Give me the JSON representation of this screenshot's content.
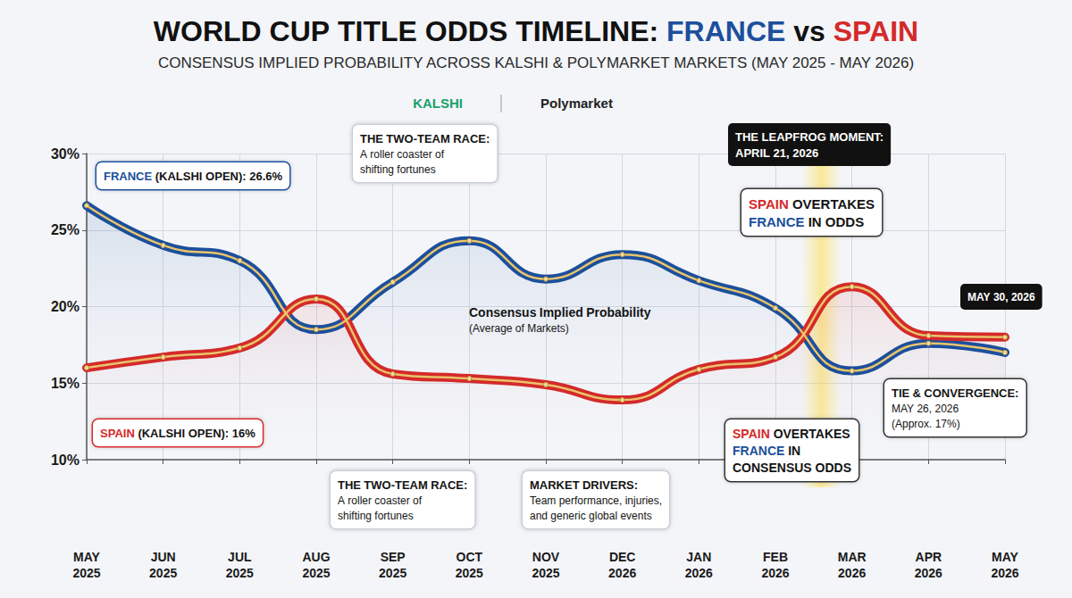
{
  "chart_data": {
    "type": "line",
    "title": "WORLD CUP TITLE ODDS TIMELINE: FRANCE vs SPAIN",
    "subtitle": "CONSENSUS IMPLIED PROBABILITY ACROSS KALSHI & POLYMARKET MARKETS (MAY 2025 - MAY 2026)",
    "sources": [
      "KALSHI",
      "Polymarket"
    ],
    "categories": [
      "MAY 2025",
      "JUN 2025",
      "JUL 2025",
      "AUG 2025",
      "SEP 2025",
      "OCT 2025",
      "NOV 2025",
      "DEC 2026",
      "JAN 2026",
      "FEB 2026",
      "MAR 2026",
      "APR 2026",
      "MAY 2026"
    ],
    "series": [
      {
        "name": "FRANCE",
        "color": "#1c4f9c",
        "values": [
          26.6,
          24.0,
          23.0,
          18.5,
          21.6,
          24.3,
          21.8,
          23.4,
          21.7,
          19.9,
          15.8,
          17.6,
          17.0
        ]
      },
      {
        "name": "SPAIN",
        "color": "#d42a2a",
        "values": [
          16.0,
          16.7,
          17.3,
          20.5,
          15.6,
          15.3,
          14.9,
          13.9,
          15.9,
          16.7,
          21.3,
          18.1,
          18.0
        ]
      }
    ],
    "ylim": [
      10,
      30
    ],
    "yticks": [
      {
        "value": 10,
        "label": "10%"
      },
      {
        "value": 15,
        "label": "15%"
      },
      {
        "value": 20,
        "label": "20%"
      },
      {
        "value": 25,
        "label": "25%"
      },
      {
        "value": 30,
        "label": "30%"
      }
    ],
    "grid": true,
    "marker": "circle",
    "line_style": "solid",
    "annotations": [
      {
        "text": "FRANCE (KALSHI OPEN): 26.6%"
      },
      {
        "text": "SPAIN (KALSHI OPEN): 16%"
      },
      {
        "heading": "THE TWO-TEAM RACE:",
        "text": "A roller coaster of shifting fortunes"
      },
      {
        "heading": "THE LEAPFROG MOMENT:",
        "text": "APRIL 21, 2026"
      },
      {
        "text": "SPAIN OVERTAKES FRANCE IN ODDS"
      },
      {
        "heading": "Consensus Implied Probability",
        "text": "(Average of Markets)"
      },
      {
        "text": "SPAIN OVERTAKES FRANCE IN CONSENSUS ODDS"
      },
      {
        "text": "MAY 30, 2026"
      },
      {
        "heading": "TIE & CONVERGENCE:",
        "text": "MAY 26, 2026 (Approx. 17%)"
      },
      {
        "heading": "THE TWO-TEAM RACE:",
        "text": "A roller coaster of shifting fortunes"
      },
      {
        "heading": "MARKET DRIVERS:",
        "text": "Team performance, injuries, and generic global events"
      }
    ]
  }
}
